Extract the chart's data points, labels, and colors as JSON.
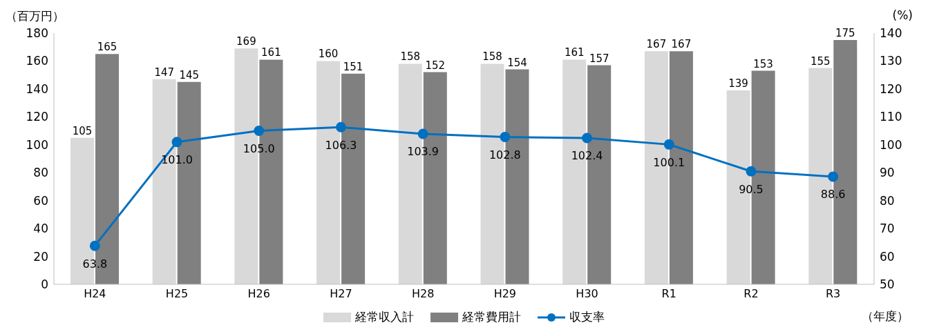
{
  "chart_data": {
    "type": "bar",
    "categories": [
      "H24",
      "H25",
      "H26",
      "H27",
      "H28",
      "H29",
      "H30",
      "R1",
      "R2",
      "R3"
    ],
    "ylabel": "（百万円）",
    "y2label": "(%)",
    "xlabel": "（年度）",
    "ylim": [
      0,
      180
    ],
    "yticks": [
      0,
      20,
      40,
      60,
      80,
      100,
      120,
      140,
      160,
      180
    ],
    "y2lim": [
      50,
      140
    ],
    "y2ticks": [
      50,
      60,
      70,
      80,
      90,
      100,
      110,
      120,
      130,
      140
    ],
    "grid": false,
    "legend": "bottom",
    "data_labels": true,
    "series": [
      {
        "name": "経常収入計",
        "color": "#d9d9d9",
        "values": [
          105,
          147,
          169,
          160,
          158,
          158,
          161,
          167,
          139,
          155
        ]
      },
      {
        "name": "経常費用計",
        "color": "#808080",
        "values": [
          165,
          145,
          161,
          151,
          152,
          154,
          157,
          167,
          153,
          175
        ]
      },
      {
        "name": "収支率",
        "type": "line",
        "axis": "y2",
        "color": "#0070c0",
        "marker": "circle",
        "values": [
          63.8,
          101.0,
          105.0,
          106.3,
          103.9,
          102.8,
          102.4,
          100.1,
          90.5,
          88.6
        ],
        "value_labels": [
          "63.8",
          "101.0",
          "105.0",
          "106.3",
          "103.9",
          "102.8",
          "102.4",
          "100.1",
          "90.5",
          "88.6"
        ]
      }
    ]
  }
}
